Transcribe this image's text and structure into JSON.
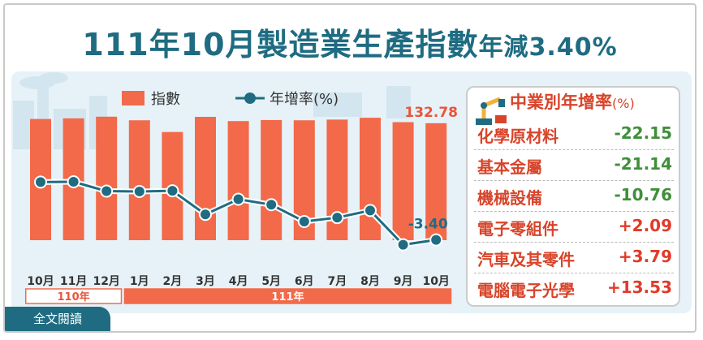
{
  "title": {
    "main": "111年10月製造業生產指數",
    "suffix": "年減3.40%"
  },
  "legend": {
    "bars": "指數",
    "line": "年增率(%)"
  },
  "chart_data": {
    "type": "bar",
    "categories": [
      "10月",
      "11月",
      "12月",
      "1月",
      "2月",
      "3月",
      "4月",
      "5月",
      "6月",
      "7月",
      "8月",
      "9月",
      "10月"
    ],
    "year_groups": [
      {
        "label": "110年",
        "span": 3
      },
      {
        "label": "111年",
        "span": 10
      }
    ],
    "series": [
      {
        "name": "指數",
        "type": "bar",
        "color": "#f26a4a",
        "values": [
          137.6,
          138.3,
          140.2,
          136.1,
          122.8,
          140.0,
          135.2,
          136.4,
          136.1,
          136.9,
          139.0,
          134.0,
          132.78
        ]
      },
      {
        "name": "年增率(%)",
        "type": "line",
        "color": "#1f6c82",
        "values": [
          14.5,
          14.6,
          11.7,
          11.6,
          11.8,
          4.5,
          9.2,
          7.5,
          2.3,
          3.5,
          5.7,
          -4.9,
          -3.4
        ]
      }
    ],
    "data_labels": {
      "last_bar": "132.78",
      "last_line": "-3.40"
    }
  },
  "sector_table": {
    "title": "中業別年增率",
    "unit": "(%)",
    "rows": [
      {
        "name": "化學原材料",
        "value": "-22.15",
        "sign": "neg"
      },
      {
        "name": "基本金屬",
        "value": "-21.14",
        "sign": "neg"
      },
      {
        "name": "機械設備",
        "value": "-10.76",
        "sign": "neg"
      },
      {
        "name": "電子零組件",
        "value": "+2.09",
        "sign": "pos"
      },
      {
        "name": "汽車及其零件",
        "value": "+3.79",
        "sign": "pos"
      },
      {
        "name": "電腦電子光學",
        "value": "+13.53",
        "sign": "pos"
      }
    ]
  },
  "colors": {
    "negative": "#3f8f3a",
    "positive": "#e23a2a",
    "accent": "#1f6c82",
    "bar": "#f26a4a"
  },
  "footer": {
    "link": "全文閱讀"
  }
}
